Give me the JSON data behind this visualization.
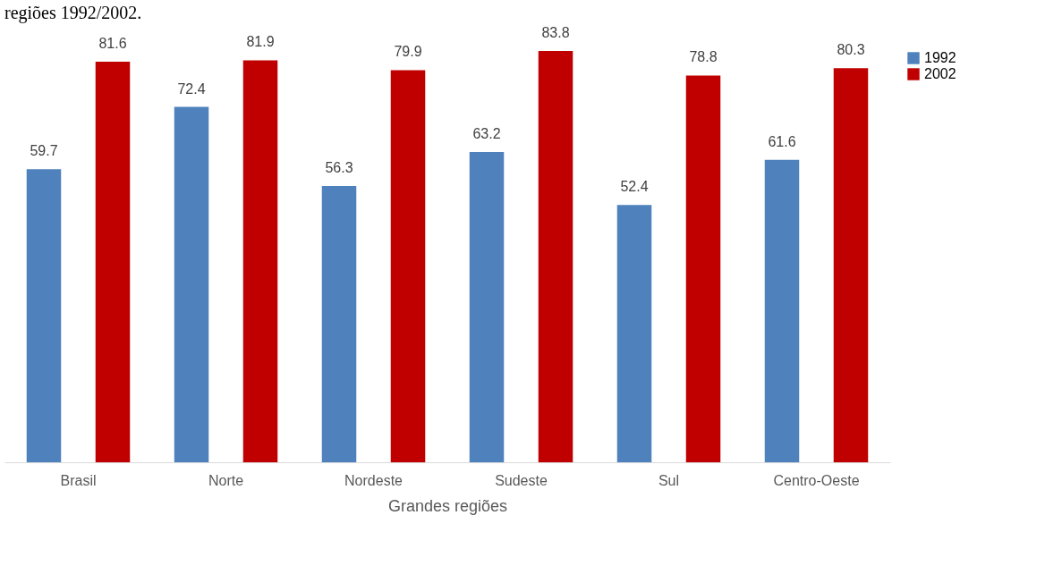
{
  "chart_data": {
    "type": "bar",
    "title": "regiões 1992/2002.",
    "xlabel": "Grandes regiões",
    "categories": [
      "Brasil",
      "Norte",
      "Nordeste",
      "Sudeste",
      "Sul",
      "Centro-Oeste"
    ],
    "series": [
      {
        "name": "1992",
        "color": "#4f81bd",
        "values": [
          59.7,
          72.4,
          56.3,
          63.2,
          52.4,
          61.6
        ]
      },
      {
        "name": "2002",
        "color": "#c00000",
        "values": [
          81.6,
          81.9,
          79.9,
          83.8,
          78.8,
          80.3
        ]
      }
    ],
    "data_labels": true,
    "legend": "right",
    "grid": false
  }
}
